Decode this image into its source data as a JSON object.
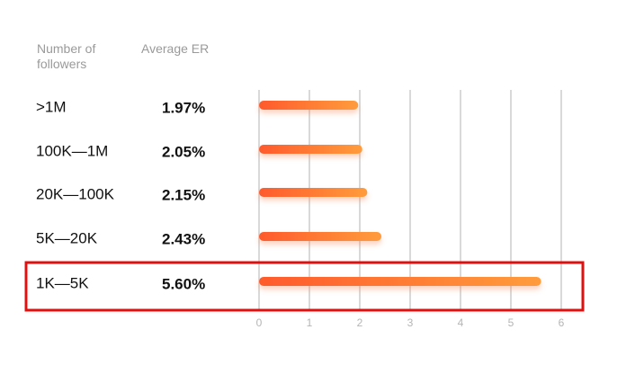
{
  "chart_data": {
    "type": "bar",
    "orientation": "horizontal",
    "column_headers": [
      "Number of followers",
      "Average ER"
    ],
    "categories": [
      ">1M",
      "100K—1M",
      "20K—100K",
      "5K—20K",
      "1K—5K"
    ],
    "values": [
      1.97,
      2.05,
      2.15,
      2.43,
      5.6
    ],
    "value_labels": [
      "1.97%",
      "2.05%",
      "2.15%",
      "2.43%",
      "5.60%"
    ],
    "color": "#ff7a33",
    "xlim": [
      0,
      6
    ],
    "xticks": [
      0,
      1,
      2,
      3,
      4,
      5,
      6
    ],
    "grid": true
  }
}
